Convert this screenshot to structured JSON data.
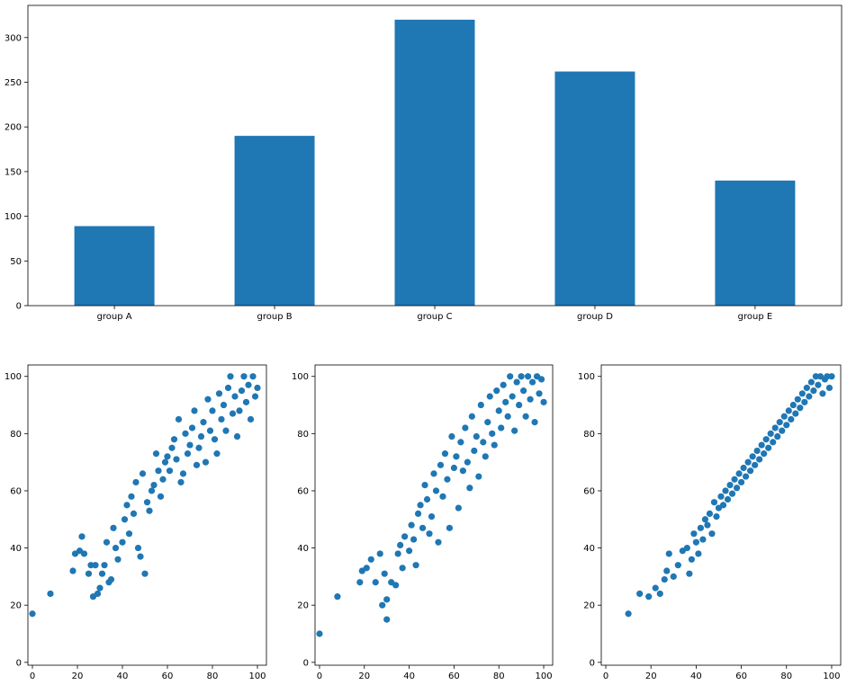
{
  "chart_data": [
    {
      "type": "bar",
      "title": "",
      "xlabel": "",
      "ylabel": "",
      "categories": [
        "group A",
        "group B",
        "group C",
        "group D",
        "group E"
      ],
      "values": [
        89,
        190,
        320,
        262,
        140
      ],
      "ylim": [
        0,
        336
      ],
      "yticks": [
        0,
        50,
        100,
        150,
        200,
        250,
        300
      ],
      "color": "#1f77b4",
      "grid": false
    },
    {
      "type": "scatter",
      "title": "",
      "xlabel": "",
      "ylabel": "",
      "xlim": [
        -2,
        104
      ],
      "ylim": [
        -1,
        104
      ],
      "xticks": [
        0,
        20,
        40,
        60,
        80,
        100
      ],
      "yticks": [
        0,
        20,
        40,
        60,
        80,
        100
      ],
      "color": "#1f77b4",
      "grid": false,
      "points": [
        [
          0,
          17
        ],
        [
          8,
          24
        ],
        [
          18,
          32
        ],
        [
          19,
          38
        ],
        [
          21,
          39
        ],
        [
          22,
          44
        ],
        [
          23,
          38
        ],
        [
          25,
          31
        ],
        [
          26,
          34
        ],
        [
          27,
          23
        ],
        [
          28,
          34
        ],
        [
          29,
          24
        ],
        [
          30,
          26
        ],
        [
          31,
          31
        ],
        [
          32,
          34
        ],
        [
          33,
          42
        ],
        [
          34,
          28
        ],
        [
          35,
          29
        ],
        [
          36,
          47
        ],
        [
          37,
          40
        ],
        [
          38,
          36
        ],
        [
          40,
          42
        ],
        [
          41,
          50
        ],
        [
          42,
          55
        ],
        [
          43,
          45
        ],
        [
          44,
          58
        ],
        [
          45,
          52
        ],
        [
          46,
          63
        ],
        [
          47,
          40
        ],
        [
          48,
          37
        ],
        [
          49,
          66
        ],
        [
          50,
          31
        ],
        [
          51,
          56
        ],
        [
          52,
          53
        ],
        [
          53,
          60
        ],
        [
          54,
          62
        ],
        [
          55,
          73
        ],
        [
          56,
          67
        ],
        [
          57,
          58
        ],
        [
          58,
          64
        ],
        [
          59,
          70
        ],
        [
          60,
          72
        ],
        [
          61,
          67
        ],
        [
          62,
          75
        ],
        [
          63,
          78
        ],
        [
          64,
          71
        ],
        [
          65,
          85
        ],
        [
          66,
          63
        ],
        [
          67,
          66
        ],
        [
          68,
          80
        ],
        [
          69,
          73
        ],
        [
          70,
          76
        ],
        [
          71,
          82
        ],
        [
          72,
          88
        ],
        [
          73,
          69
        ],
        [
          74,
          75
        ],
        [
          75,
          79
        ],
        [
          76,
          84
        ],
        [
          77,
          70
        ],
        [
          78,
          92
        ],
        [
          79,
          81
        ],
        [
          80,
          88
        ],
        [
          81,
          78
        ],
        [
          82,
          73
        ],
        [
          83,
          94
        ],
        [
          84,
          85
        ],
        [
          85,
          90
        ],
        [
          86,
          81
        ],
        [
          87,
          96
        ],
        [
          88,
          100
        ],
        [
          89,
          87
        ],
        [
          90,
          93
        ],
        [
          91,
          79
        ],
        [
          92,
          88
        ],
        [
          93,
          95
        ],
        [
          94,
          100
        ],
        [
          95,
          91
        ],
        [
          96,
          97
        ],
        [
          97,
          85
        ],
        [
          98,
          100
        ],
        [
          99,
          93
        ],
        [
          100,
          96
        ]
      ]
    },
    {
      "type": "scatter",
      "title": "",
      "xlabel": "",
      "ylabel": "",
      "xlim": [
        -2,
        104
      ],
      "ylim": [
        -1,
        104
      ],
      "xticks": [
        0,
        20,
        40,
        60,
        80,
        100
      ],
      "yticks": [
        0,
        20,
        40,
        60,
        80,
        100
      ],
      "color": "#1f77b4",
      "grid": false,
      "points": [
        [
          0,
          10
        ],
        [
          8,
          23
        ],
        [
          18,
          28
        ],
        [
          19,
          32
        ],
        [
          21,
          33
        ],
        [
          23,
          36
        ],
        [
          25,
          28
        ],
        [
          27,
          38
        ],
        [
          28,
          20
        ],
        [
          29,
          31
        ],
        [
          30,
          15
        ],
        [
          30,
          22
        ],
        [
          32,
          28
        ],
        [
          34,
          27
        ],
        [
          35,
          38
        ],
        [
          36,
          41
        ],
        [
          37,
          33
        ],
        [
          38,
          44
        ],
        [
          40,
          39
        ],
        [
          41,
          48
        ],
        [
          42,
          43
        ],
        [
          43,
          34
        ],
        [
          44,
          52
        ],
        [
          45,
          55
        ],
        [
          46,
          47
        ],
        [
          47,
          62
        ],
        [
          48,
          57
        ],
        [
          49,
          45
        ],
        [
          50,
          51
        ],
        [
          51,
          66
        ],
        [
          52,
          60
        ],
        [
          53,
          42
        ],
        [
          54,
          69
        ],
        [
          55,
          58
        ],
        [
          56,
          73
        ],
        [
          57,
          64
        ],
        [
          58,
          47
        ],
        [
          59,
          79
        ],
        [
          60,
          68
        ],
        [
          61,
          72
        ],
        [
          62,
          54
        ],
        [
          63,
          77
        ],
        [
          64,
          67
        ],
        [
          65,
          82
        ],
        [
          66,
          70
        ],
        [
          67,
          61
        ],
        [
          68,
          86
        ],
        [
          69,
          74
        ],
        [
          70,
          79
        ],
        [
          71,
          65
        ],
        [
          72,
          90
        ],
        [
          73,
          77
        ],
        [
          74,
          72
        ],
        [
          75,
          84
        ],
        [
          76,
          93
        ],
        [
          77,
          80
        ],
        [
          78,
          76
        ],
        [
          79,
          95
        ],
        [
          80,
          88
        ],
        [
          81,
          82
        ],
        [
          82,
          97
        ],
        [
          83,
          91
        ],
        [
          84,
          86
        ],
        [
          85,
          100
        ],
        [
          86,
          93
        ],
        [
          87,
          81
        ],
        [
          88,
          98
        ],
        [
          89,
          90
        ],
        [
          90,
          100
        ],
        [
          91,
          95
        ],
        [
          92,
          86
        ],
        [
          93,
          100
        ],
        [
          94,
          92
        ],
        [
          95,
          98
        ],
        [
          96,
          84
        ],
        [
          97,
          100
        ],
        [
          98,
          94
        ],
        [
          99,
          99
        ],
        [
          100,
          91
        ]
      ]
    },
    {
      "type": "scatter",
      "title": "",
      "xlabel": "",
      "ylabel": "",
      "xlim": [
        -2,
        104
      ],
      "ylim": [
        -1,
        104
      ],
      "xticks": [
        0,
        20,
        40,
        60,
        80,
        100
      ],
      "yticks": [
        0,
        20,
        40,
        60,
        80,
        100
      ],
      "color": "#1f77b4",
      "grid": false,
      "points": [
        [
          10,
          17
        ],
        [
          15,
          24
        ],
        [
          19,
          23
        ],
        [
          22,
          26
        ],
        [
          24,
          24
        ],
        [
          26,
          29
        ],
        [
          27,
          32
        ],
        [
          28,
          38
        ],
        [
          30,
          30
        ],
        [
          32,
          34
        ],
        [
          34,
          39
        ],
        [
          36,
          40
        ],
        [
          37,
          31
        ],
        [
          38,
          36
        ],
        [
          39,
          45
        ],
        [
          40,
          42
        ],
        [
          41,
          38
        ],
        [
          42,
          47
        ],
        [
          43,
          43
        ],
        [
          44,
          50
        ],
        [
          45,
          48
        ],
        [
          46,
          52
        ],
        [
          47,
          45
        ],
        [
          48,
          56
        ],
        [
          49,
          51
        ],
        [
          50,
          54
        ],
        [
          51,
          58
        ],
        [
          52,
          55
        ],
        [
          53,
          60
        ],
        [
          54,
          57
        ],
        [
          55,
          62
        ],
        [
          56,
          59
        ],
        [
          57,
          64
        ],
        [
          58,
          61
        ],
        [
          59,
          66
        ],
        [
          60,
          63
        ],
        [
          61,
          68
        ],
        [
          62,
          65
        ],
        [
          63,
          70
        ],
        [
          64,
          67
        ],
        [
          65,
          72
        ],
        [
          66,
          69
        ],
        [
          67,
          74
        ],
        [
          68,
          71
        ],
        [
          69,
          76
        ],
        [
          70,
          73
        ],
        [
          71,
          78
        ],
        [
          72,
          75
        ],
        [
          73,
          80
        ],
        [
          74,
          77
        ],
        [
          75,
          82
        ],
        [
          76,
          79
        ],
        [
          77,
          84
        ],
        [
          78,
          81
        ],
        [
          79,
          86
        ],
        [
          80,
          83
        ],
        [
          81,
          88
        ],
        [
          82,
          85
        ],
        [
          83,
          90
        ],
        [
          84,
          87
        ],
        [
          85,
          92
        ],
        [
          86,
          89
        ],
        [
          87,
          94
        ],
        [
          88,
          91
        ],
        [
          89,
          96
        ],
        [
          90,
          93
        ],
        [
          91,
          98
        ],
        [
          92,
          95
        ],
        [
          93,
          100
        ],
        [
          94,
          97
        ],
        [
          95,
          100
        ],
        [
          96,
          94
        ],
        [
          97,
          99
        ],
        [
          98,
          100
        ],
        [
          99,
          96
        ],
        [
          100,
          100
        ]
      ]
    }
  ]
}
